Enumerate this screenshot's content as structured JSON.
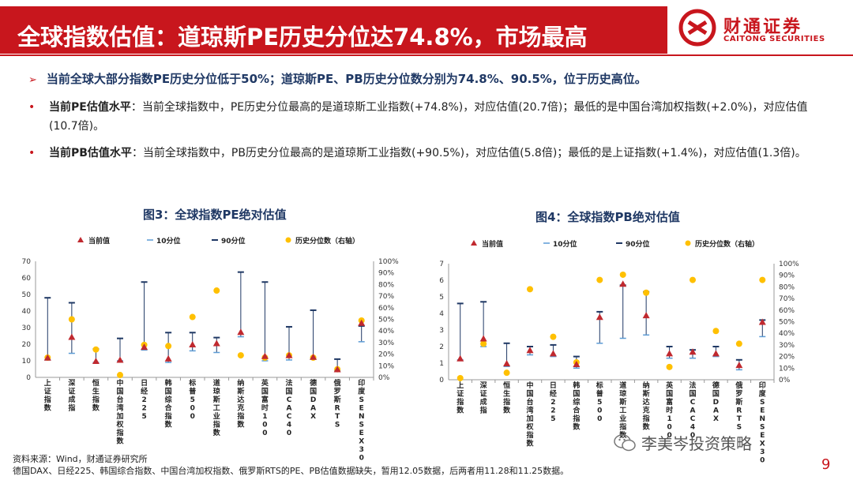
{
  "header": {
    "title": "全球指数估值：道琼斯PE历史分位达74.8%，市场最高",
    "logo_cn": "财通证券",
    "logo_en": "CAITONG SECURITIES"
  },
  "summary": "当前全球大部分指数PE历史分位低于50%；道琼斯PE、PB历史分位数分别为74.8%、90.5%，位于历史高位。",
  "bullets": [
    {
      "label": "当前PE估值水平",
      "text": "：当前全球指数中，PE历史分位最高的是道琼斯工业指数(+74.8%)，对应估值(20.7倍)；最低的是中国台湾加权指数(+2.0%)，对应估值(10.7倍)。"
    },
    {
      "label": "当前PB估值水平",
      "text": "：当前全球指数中，PB历史分位最高的是道琼斯工业指数(+90.5%)，对应估值(5.8倍)；最低的是上证指数(+1.4%)，对应估值(1.3倍)。"
    }
  ],
  "colors": {
    "brand_red": "#c8161d",
    "navy": "#1f3864",
    "marker_current": "#c0292f",
    "marker_percentile": "#ffc000",
    "line_range": "#1f3864",
    "tick_10": "#5b9bd5"
  },
  "chart_data": [
    {
      "type": "scatter",
      "title": "图3：全球指数PE绝对估值",
      "legend": [
        "当前值",
        "10分位",
        "90分位",
        "历史分位数（右轴）"
      ],
      "legend_placement": "top",
      "categories": [
        "上证指数",
        "深证成指",
        "恒生指数",
        "中国台湾加权指数",
        "日经225",
        "韩国综合指数",
        "标普500",
        "道琼斯工业指数",
        "纳斯达克指数",
        "英国富时100",
        "法国CAC40",
        "德国DAX",
        "俄罗斯RTS",
        "印度SENSEX30"
      ],
      "series": [
        {
          "name": "当前值",
          "values": [
            12.0,
            24.5,
            10.0,
            10.7,
            18.5,
            11.5,
            20.0,
            20.7,
            27.5,
            13.0,
            13.5,
            12.5,
            5.0,
            33.0
          ]
        },
        {
          "name": "10分位",
          "values": [
            10.5,
            14.5,
            9.0,
            10.0,
            16.5,
            9.0,
            16.0,
            15.0,
            24.5,
            10.0,
            10.5,
            11.0,
            4.0,
            21.5
          ]
        },
        {
          "name": "90分位",
          "values": [
            48.0,
            45.0,
            17.0,
            23.5,
            57.5,
            27.0,
            27.0,
            24.0,
            63.5,
            57.5,
            30.5,
            40.5,
            11.0,
            31.0
          ]
        },
        {
          "name": "历史分位数（右轴）",
          "values": [
            17,
            50,
            24,
            2,
            28,
            27,
            52,
            74.8,
            19,
            17,
            19,
            17,
            7,
            49
          ]
        }
      ],
      "ylim": [
        0,
        70
      ],
      "yticks": [
        0,
        10,
        20,
        30,
        40,
        50,
        60,
        70
      ],
      "y2lim": [
        0,
        100
      ],
      "y2ticks": [
        "0%",
        "10%",
        "20%",
        "30%",
        "40%",
        "50%",
        "60%",
        "70%",
        "80%",
        "90%",
        "100%"
      ]
    },
    {
      "type": "scatter",
      "title": "图4：全球指数PB绝对估值",
      "legend": [
        "当前值",
        "10分位",
        "90分位",
        "历史分位数（右轴）"
      ],
      "legend_placement": "top",
      "categories": [
        "上证指数",
        "深证成指",
        "恒生指数",
        "中国台湾加权指数",
        "日经225",
        "韩国综合指数",
        "标普500",
        "道琼斯工业指数",
        "纳斯达克指数",
        "英国富时100",
        "法国CAC40",
        "德国DAX",
        "俄罗斯RTS",
        "印度SENSEX30"
      ],
      "series": [
        {
          "name": "当前值",
          "values": [
            1.3,
            2.5,
            1.0,
            1.8,
            1.6,
            0.95,
            3.8,
            5.8,
            3.9,
            1.6,
            1.7,
            1.6,
            0.9,
            3.5
          ]
        },
        {
          "name": "10分位",
          "values": [
            1.2,
            2.0,
            0.8,
            1.5,
            1.4,
            0.7,
            2.2,
            2.5,
            2.7,
            1.3,
            1.3,
            1.4,
            0.6,
            2.6
          ]
        },
        {
          "name": "90分位",
          "values": [
            4.6,
            4.7,
            2.2,
            2.0,
            2.1,
            1.4,
            4.1,
            5.7,
            5.3,
            2.0,
            1.8,
            2.0,
            1.2,
            3.6
          ]
        },
        {
          "name": "历史分位数（右轴）",
          "values": [
            1.4,
            31,
            6,
            78,
            37,
            15,
            86,
            90.5,
            75,
            11,
            86,
            42,
            31,
            86
          ]
        }
      ],
      "ylim": [
        0,
        7
      ],
      "yticks": [
        0,
        1,
        2,
        3,
        4,
        5,
        6,
        7
      ],
      "y2lim": [
        0,
        100
      ],
      "y2ticks": [
        "0%",
        "10%",
        "20%",
        "30%",
        "40%",
        "50%",
        "60%",
        "70%",
        "80%",
        "90%",
        "100%"
      ]
    }
  ],
  "footer": {
    "source": "资料来源：Wind，财通证券研究所",
    "note": "德国DAX、日经225、韩国综合指数、中国台湾加权指数、俄罗斯RTS的PE、PB估值数据缺失，暂用12.05数据，后两者用11.28和11.25数据。",
    "watermark": "李美岑投资策略",
    "page": "9"
  }
}
